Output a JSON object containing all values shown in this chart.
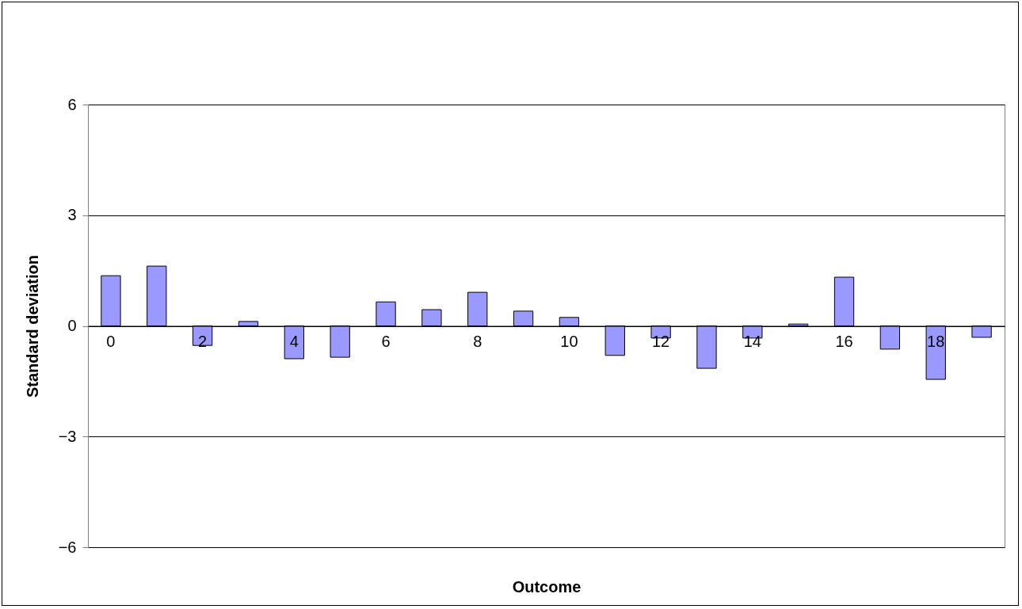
{
  "chart_data": {
    "type": "bar",
    "xlabel": "Outcome",
    "ylabel": "Standard  deviation",
    "categories": [
      "0",
      null,
      "2",
      null,
      "4",
      null,
      "6",
      null,
      "8",
      null,
      "10",
      null,
      "12",
      null,
      "14",
      null,
      "16",
      null,
      "18",
      null
    ],
    "values": [
      1.36,
      1.62,
      -0.53,
      0.12,
      -0.89,
      -0.85,
      0.65,
      0.44,
      0.91,
      0.4,
      0.23,
      -0.8,
      -0.33,
      -1.15,
      -0.33,
      0.05,
      1.32,
      -0.63,
      -1.45,
      -0.31
    ],
    "color": "#9999ff",
    "ylim": [
      -6,
      6
    ],
    "yticks": [
      -6,
      -3,
      0,
      3,
      6
    ],
    "grid": "y"
  }
}
